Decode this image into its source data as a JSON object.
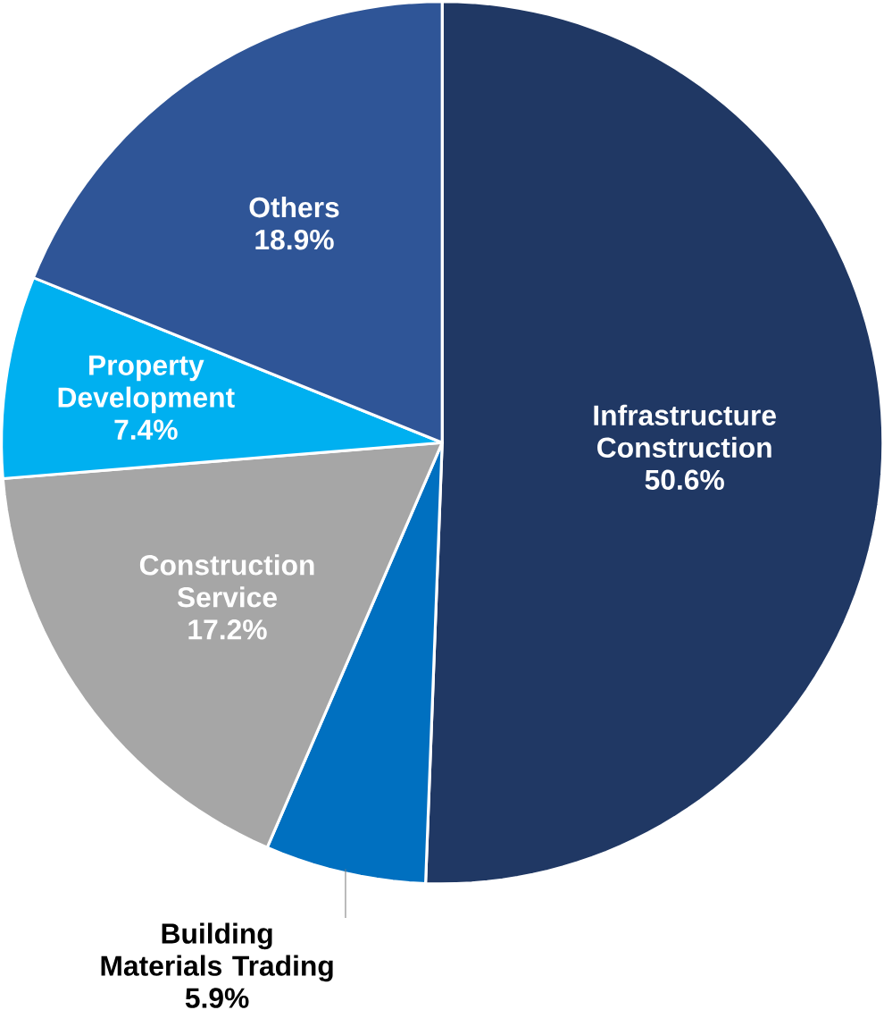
{
  "chart_data": {
    "type": "pie",
    "categories": [
      "Infrastructure Construction",
      "Building Materials Trading",
      "Construction Service",
      "Property Development",
      "Others"
    ],
    "values": [
      50.6,
      5.9,
      17.2,
      7.4,
      18.9
    ],
    "colors": [
      "#203864",
      "#0070c0",
      "#a6a6a6",
      "#00b0f0",
      "#2f5597"
    ],
    "value_labels": [
      "50.6%",
      "5.9%",
      "17.2%",
      "7.4%",
      "18.9%"
    ]
  }
}
